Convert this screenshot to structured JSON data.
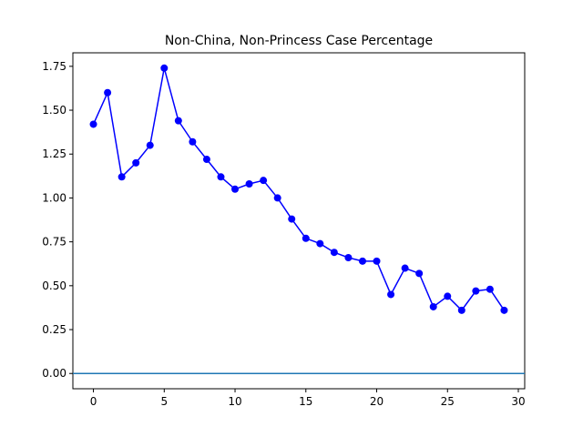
{
  "chart_data": {
    "type": "line",
    "title": "Non-China, Non-Princess Case Percentage",
    "xlabel": "",
    "ylabel": "",
    "xlim": [
      -1.45,
      30.45
    ],
    "ylim": [
      -0.087,
      1.827
    ],
    "x_ticks": [
      0,
      5,
      10,
      15,
      20,
      25,
      30
    ],
    "x_tick_labels": [
      "0",
      "5",
      "10",
      "15",
      "20",
      "25",
      "30"
    ],
    "y_ticks": [
      0.0,
      0.25,
      0.5,
      0.75,
      1.0,
      1.25,
      1.5,
      1.75
    ],
    "y_tick_labels": [
      "0.00",
      "0.25",
      "0.50",
      "0.75",
      "1.00",
      "1.25",
      "1.50",
      "1.75"
    ],
    "grid": false,
    "series": [
      {
        "color": "#0000ff",
        "marker": "circle",
        "x": [
          0,
          1,
          2,
          3,
          4,
          5,
          6,
          7,
          8,
          9,
          10,
          11,
          12,
          13,
          14,
          15,
          16,
          17,
          18,
          19,
          20,
          21,
          22,
          23,
          24,
          25,
          26,
          27,
          28,
          29
        ],
        "values": [
          1.42,
          1.6,
          1.12,
          1.2,
          1.3,
          1.74,
          1.44,
          1.32,
          1.22,
          1.12,
          1.05,
          1.08,
          1.1,
          1.0,
          0.88,
          0.77,
          0.74,
          0.69,
          0.66,
          0.64,
          0.64,
          0.45,
          0.6,
          0.57,
          0.38,
          0.44,
          0.36,
          0.47,
          0.48,
          0.36
        ]
      }
    ],
    "reference_line": {
      "y": 0.0,
      "color": "#1f77b4"
    }
  }
}
